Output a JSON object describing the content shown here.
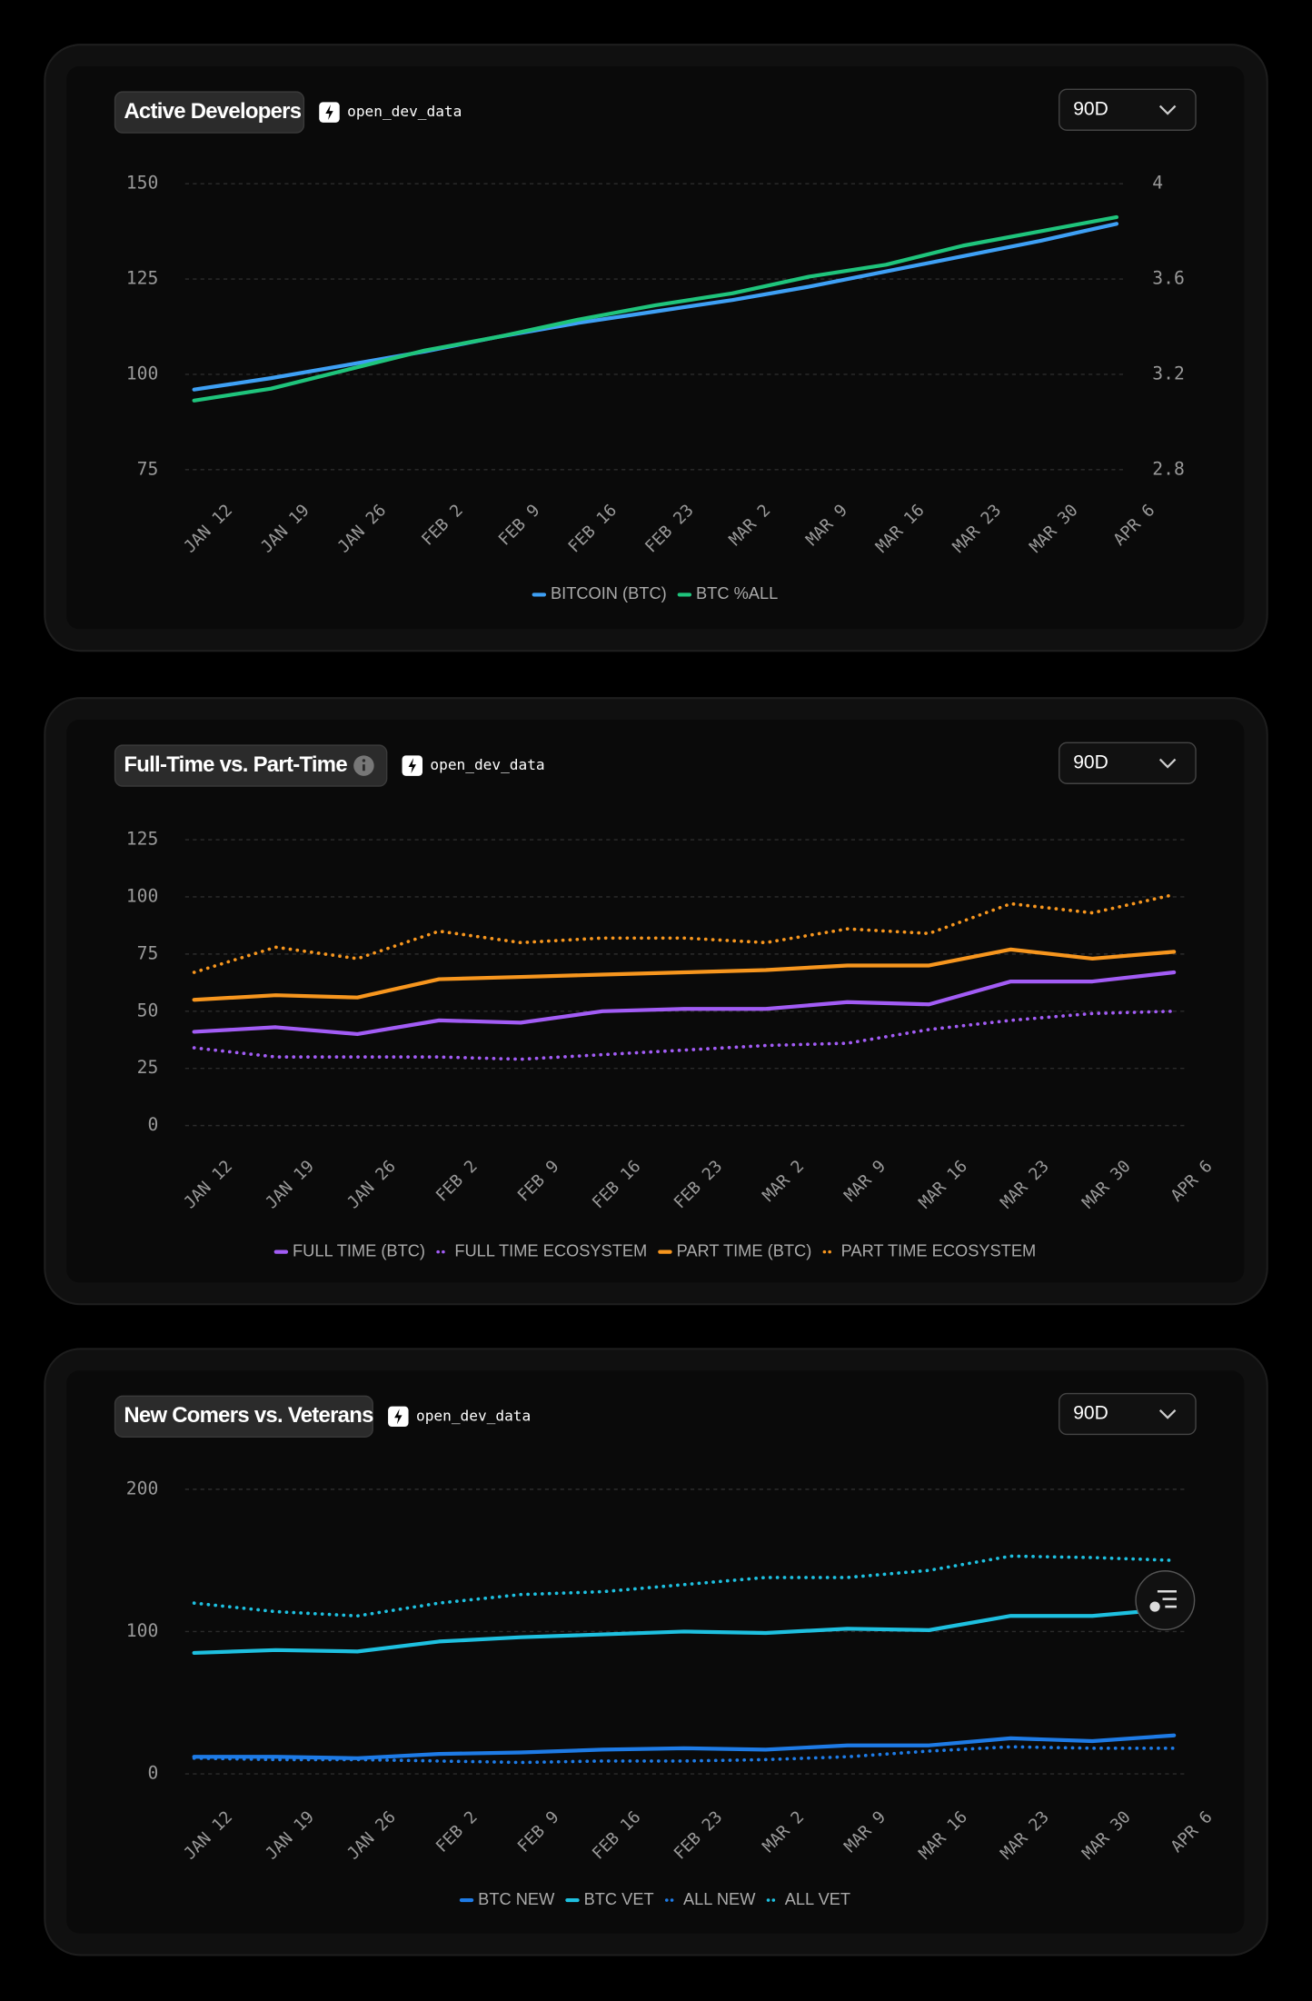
{
  "chart_data": [
    {
      "type": "line",
      "title": "Active Developers",
      "source": "open_dev_data",
      "range": "90D",
      "categories": [
        "JAN 12",
        "JAN 19",
        "JAN 26",
        "FEB 2",
        "FEB 9",
        "FEB 16",
        "FEB 23",
        "MAR 2",
        "MAR 9",
        "MAR 16",
        "MAR 23",
        "MAR 30",
        "APR 6"
      ],
      "ylim": [
        75,
        150
      ],
      "yticks": [
        75,
        100,
        125,
        150
      ],
      "y2lim": [
        2.8,
        4
      ],
      "y2ticks": [
        2.8,
        3.2,
        3.6,
        4
      ],
      "grid": true,
      "series": [
        {
          "name": "BITCOIN (BTC)",
          "color": "#3ea0f5",
          "dashed": false,
          "values": [
            96,
            99,
            102.5,
            106,
            110,
            113.5,
            116.5,
            119.5,
            123,
            127,
            131,
            135,
            139.5
          ]
        },
        {
          "name": "BTC %ALL",
          "color": "#1fc47c",
          "dashed": false,
          "axis": "y2",
          "values": [
            3.09,
            3.14,
            3.22,
            3.3,
            3.36,
            3.43,
            3.49,
            3.54,
            3.61,
            3.66,
            3.74,
            3.8,
            3.86
          ]
        }
      ]
    },
    {
      "type": "line",
      "title": "Full-Time vs. Part-Time",
      "source": "open_dev_data",
      "range": "90D",
      "categories": [
        "JAN 12",
        "JAN 19",
        "JAN 26",
        "FEB 2",
        "FEB 9",
        "FEB 16",
        "FEB 23",
        "MAR 2",
        "MAR 9",
        "MAR 16",
        "MAR 23",
        "MAR 30",
        "APR 6"
      ],
      "ylim": [
        0,
        125
      ],
      "yticks": [
        0,
        25,
        50,
        75,
        100,
        125
      ],
      "grid": true,
      "series": [
        {
          "name": "FULL TIME (BTC)",
          "color": "#a25cf5",
          "dashed": false,
          "values": [
            41,
            43,
            40,
            46,
            45,
            50,
            51,
            51,
            54,
            53,
            63,
            63,
            67
          ]
        },
        {
          "name": "FULL TIME ECOSYSTEM",
          "color": "#a25cf5",
          "dashed": true,
          "values": [
            34,
            30,
            30,
            30,
            29,
            31,
            33,
            35,
            36,
            42,
            46,
            49,
            50
          ]
        },
        {
          "name": "PART TIME (BTC)",
          "color": "#f7961e",
          "dashed": false,
          "values": [
            55,
            57,
            56,
            64,
            65,
            66,
            67,
            68,
            70,
            70,
            77,
            73,
            76
          ]
        },
        {
          "name": "PART TIME ECOSYSTEM",
          "color": "#f7961e",
          "dashed": true,
          "values": [
            67,
            78,
            73,
            85,
            80,
            82,
            82,
            80,
            86,
            84,
            97,
            93,
            101
          ]
        }
      ]
    },
    {
      "type": "line",
      "title": "New Comers vs. Veterans",
      "source": "open_dev_data",
      "range": "90D",
      "categories": [
        "JAN 12",
        "JAN 19",
        "JAN 26",
        "FEB 2",
        "FEB 9",
        "FEB 16",
        "FEB 23",
        "MAR 2",
        "MAR 9",
        "MAR 16",
        "MAR 23",
        "MAR 30",
        "APR 6"
      ],
      "ylim": [
        0,
        200
      ],
      "yticks": [
        0,
        100,
        200
      ],
      "grid": true,
      "series": [
        {
          "name": "BTC NEW",
          "color": "#1e7be6",
          "dashed": false,
          "values": [
            12,
            12,
            11,
            14,
            15,
            17,
            18,
            17,
            20,
            20,
            25,
            23,
            27
          ]
        },
        {
          "name": "BTC VET",
          "color": "#1ec0e0",
          "dashed": false,
          "values": [
            85,
            87,
            86,
            93,
            96,
            98,
            100,
            99,
            102,
            101,
            111,
            111,
            116
          ]
        },
        {
          "name": "ALL NEW",
          "color": "#1e7be6",
          "dashed": true,
          "values": [
            11,
            10,
            10,
            9,
            8,
            9,
            9,
            10,
            12,
            16,
            19,
            18,
            18
          ]
        },
        {
          "name": "ALL VET",
          "color": "#1ec0e0",
          "dashed": true,
          "values": [
            120,
            114,
            111,
            120,
            126,
            128,
            133,
            138,
            138,
            143,
            153,
            152,
            150
          ]
        }
      ]
    }
  ]
}
